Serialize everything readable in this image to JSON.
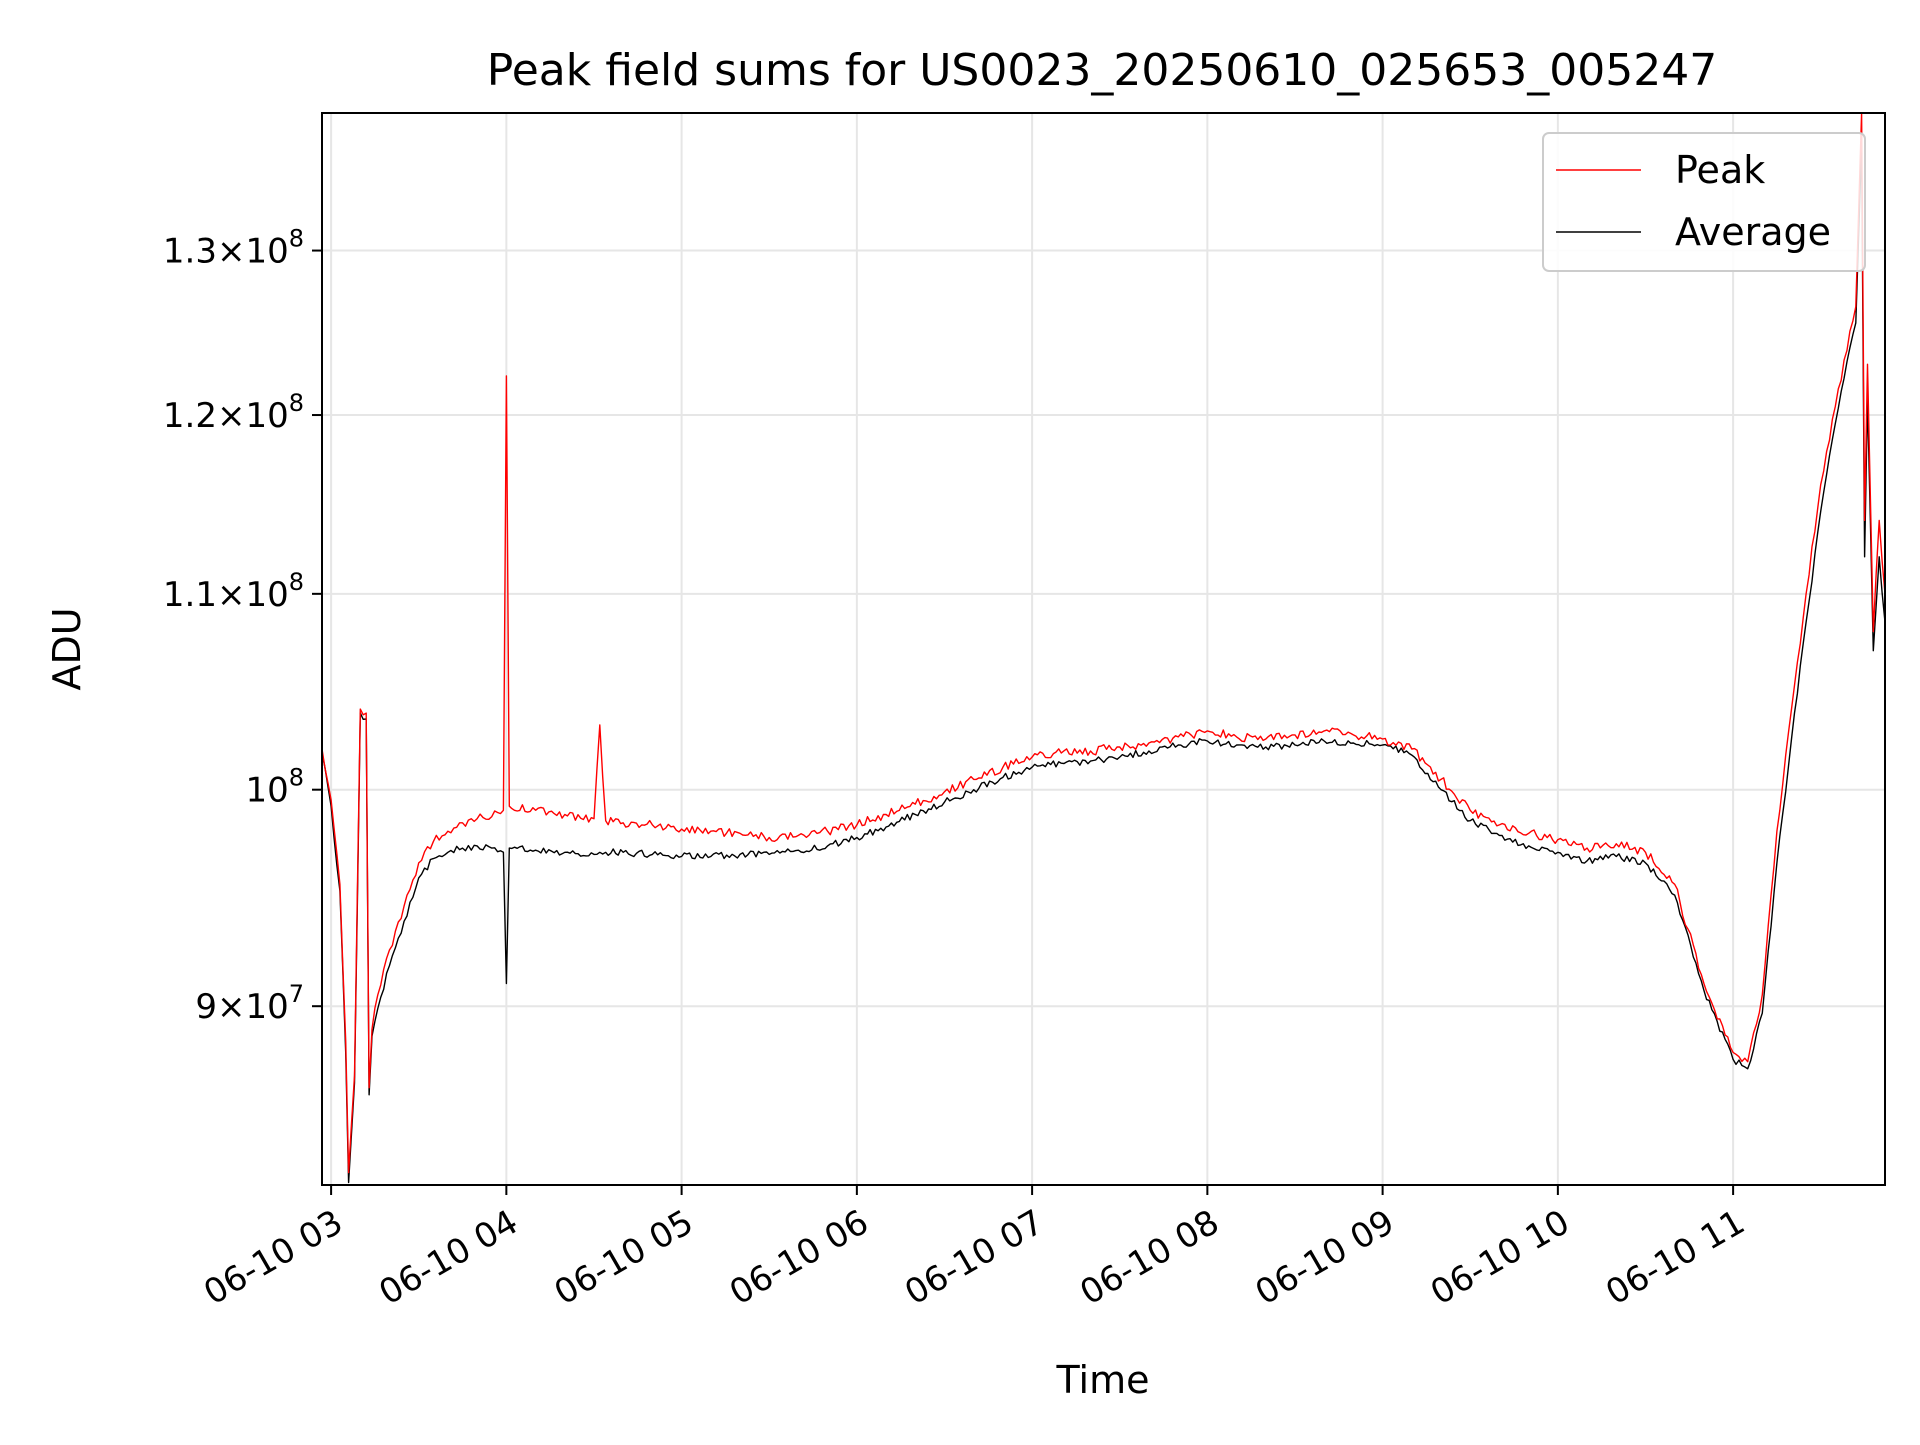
{
  "chart_data": {
    "type": "line",
    "title": "Peak field sums for US0023_20250610_025653_005247",
    "xlabel": "Time",
    "ylabel": "ADU",
    "y_scale": "log",
    "grid": true,
    "legend_position": "top-right",
    "xlim": [
      "2025-06-10T02:56:53",
      "2025-06-10T11:52:00"
    ],
    "ylim": [
      82500000,
      139000000
    ],
    "x_ticks": [
      {
        "value": "2025-06-10T03:00",
        "label": "06-10 03"
      },
      {
        "value": "2025-06-10T04:00",
        "label": "06-10 04"
      },
      {
        "value": "2025-06-10T05:00",
        "label": "06-10 05"
      },
      {
        "value": "2025-06-10T06:00",
        "label": "06-10 06"
      },
      {
        "value": "2025-06-10T07:00",
        "label": "06-10 07"
      },
      {
        "value": "2025-06-10T08:00",
        "label": "06-10 08"
      },
      {
        "value": "2025-06-10T09:00",
        "label": "06-10 09"
      },
      {
        "value": "2025-06-10T10:00",
        "label": "06-10 10"
      },
      {
        "value": "2025-06-10T11:00",
        "label": "06-10 11"
      }
    ],
    "y_ticks": [
      {
        "value": 90000000,
        "mantissa": "9",
        "exponent": "7"
      },
      {
        "value": 100000000,
        "mantissa": "10",
        "exponent": "8",
        "plain_power": true
      },
      {
        "value": 110000000,
        "mantissa": "1.1",
        "exponent": "8"
      },
      {
        "value": 120000000,
        "mantissa": "1.2",
        "exponent": "8"
      },
      {
        "value": 130000000,
        "mantissa": "1.3",
        "exponent": "8"
      }
    ],
    "series": [
      {
        "name": "Peak",
        "color": "#ff0000",
        "x": [
          "2025-06-10T02:56:53",
          "2025-06-10T03:00",
          "2025-06-10T03:03",
          "2025-06-10T03:05",
          "2025-06-10T03:06",
          "2025-06-10T03:08",
          "2025-06-10T03:10",
          "2025-06-10T03:12",
          "2025-06-10T03:13",
          "2025-06-10T03:14",
          "2025-06-10T03:16",
          "2025-06-10T03:20",
          "2025-06-10T03:25",
          "2025-06-10T03:30",
          "2025-06-10T03:35",
          "2025-06-10T03:40",
          "2025-06-10T03:45",
          "2025-06-10T03:50",
          "2025-06-10T03:55",
          "2025-06-10T03:59",
          "2025-06-10T04:00",
          "2025-06-10T04:01",
          "2025-06-10T04:10",
          "2025-06-10T04:20",
          "2025-06-10T04:30",
          "2025-06-10T04:32",
          "2025-06-10T04:34",
          "2025-06-10T04:40",
          "2025-06-10T04:50",
          "2025-06-10T05:00",
          "2025-06-10T05:10",
          "2025-06-10T05:20",
          "2025-06-10T05:30",
          "2025-06-10T05:40",
          "2025-06-10T05:50",
          "2025-06-10T06:00",
          "2025-06-10T06:10",
          "2025-06-10T06:20",
          "2025-06-10T06:30",
          "2025-06-10T06:40",
          "2025-06-10T06:50",
          "2025-06-10T07:00",
          "2025-06-10T07:10",
          "2025-06-10T07:20",
          "2025-06-10T07:30",
          "2025-06-10T07:40",
          "2025-06-10T07:50",
          "2025-06-10T08:00",
          "2025-06-10T08:10",
          "2025-06-10T08:20",
          "2025-06-10T08:30",
          "2025-06-10T08:40",
          "2025-06-10T08:50",
          "2025-06-10T09:00",
          "2025-06-10T09:10",
          "2025-06-10T09:20",
          "2025-06-10T09:30",
          "2025-06-10T09:40",
          "2025-06-10T09:50",
          "2025-06-10T10:00",
          "2025-06-10T10:10",
          "2025-06-10T10:20",
          "2025-06-10T10:30",
          "2025-06-10T10:40",
          "2025-06-10T10:50",
          "2025-06-10T11:00",
          "2025-06-10T11:05",
          "2025-06-10T11:10",
          "2025-06-10T11:15",
          "2025-06-10T11:20",
          "2025-06-10T11:25",
          "2025-06-10T11:30",
          "2025-06-10T11:35",
          "2025-06-10T11:40",
          "2025-06-10T11:42",
          "2025-06-10T11:44",
          "2025-06-10T11:45",
          "2025-06-10T11:46",
          "2025-06-10T11:48",
          "2025-06-10T11:50",
          "2025-06-10T11:52"
        ],
        "y": [
          102000000,
          99500000,
          95500000,
          88500000,
          83000000,
          87000000,
          104000000,
          103800000,
          86500000,
          89000000,
          90500000,
          92500000,
          94500000,
          96500000,
          97500000,
          98000000,
          98400000,
          98600000,
          98700000,
          99000000,
          122300000,
          99200000,
          99000000,
          98800000,
          98600000,
          103200000,
          98500000,
          98400000,
          98300000,
          98100000,
          98000000,
          97900000,
          97700000,
          97800000,
          98000000,
          98300000,
          98800000,
          99300000,
          99900000,
          100500000,
          101100000,
          101600000,
          101800000,
          101900000,
          102100000,
          102300000,
          102600000,
          102900000,
          102600000,
          102500000,
          102700000,
          102900000,
          102700000,
          102500000,
          102000000,
          100500000,
          99000000,
          98300000,
          97900000,
          97600000,
          97200000,
          97400000,
          97000000,
          95500000,
          91000000,
          88000000,
          87600000,
          90500000,
          98000000,
          104000000,
          110000000,
          116000000,
          120500000,
          125000000,
          126500000,
          139000000,
          114000000,
          123000000,
          108000000,
          114000000,
          110000000
        ]
      },
      {
        "name": "Average",
        "color": "#000000",
        "x": [
          "2025-06-10T02:56:53",
          "2025-06-10T03:00",
          "2025-06-10T03:03",
          "2025-06-10T03:05",
          "2025-06-10T03:06",
          "2025-06-10T03:08",
          "2025-06-10T03:10",
          "2025-06-10T03:12",
          "2025-06-10T03:13",
          "2025-06-10T03:14",
          "2025-06-10T03:16",
          "2025-06-10T03:20",
          "2025-06-10T03:25",
          "2025-06-10T03:30",
          "2025-06-10T03:35",
          "2025-06-10T03:40",
          "2025-06-10T03:45",
          "2025-06-10T03:50",
          "2025-06-10T03:55",
          "2025-06-10T03:59",
          "2025-06-10T04:00",
          "2025-06-10T04:01",
          "2025-06-10T04:10",
          "2025-06-10T04:20",
          "2025-06-10T04:30",
          "2025-06-10T04:32",
          "2025-06-10T04:34",
          "2025-06-10T04:40",
          "2025-06-10T04:50",
          "2025-06-10T05:00",
          "2025-06-10T05:10",
          "2025-06-10T05:20",
          "2025-06-10T05:30",
          "2025-06-10T05:40",
          "2025-06-10T05:50",
          "2025-06-10T06:00",
          "2025-06-10T06:10",
          "2025-06-10T06:20",
          "2025-06-10T06:30",
          "2025-06-10T06:40",
          "2025-06-10T06:50",
          "2025-06-10T07:00",
          "2025-06-10T07:10",
          "2025-06-10T07:20",
          "2025-06-10T07:30",
          "2025-06-10T07:40",
          "2025-06-10T07:50",
          "2025-06-10T08:00",
          "2025-06-10T08:10",
          "2025-06-10T08:20",
          "2025-06-10T08:30",
          "2025-06-10T08:40",
          "2025-06-10T08:50",
          "2025-06-10T09:00",
          "2025-06-10T09:10",
          "2025-06-10T09:20",
          "2025-06-10T09:30",
          "2025-06-10T09:40",
          "2025-06-10T09:50",
          "2025-06-10T10:00",
          "2025-06-10T10:10",
          "2025-06-10T10:20",
          "2025-06-10T10:30",
          "2025-06-10T10:40",
          "2025-06-10T10:50",
          "2025-06-10T11:00",
          "2025-06-10T11:05",
          "2025-06-10T11:10",
          "2025-06-10T11:15",
          "2025-06-10T11:20",
          "2025-06-10T11:25",
          "2025-06-10T11:30",
          "2025-06-10T11:35",
          "2025-06-10T11:40",
          "2025-06-10T11:42",
          "2025-06-10T11:44",
          "2025-06-10T11:45",
          "2025-06-10T11:46",
          "2025-06-10T11:48",
          "2025-06-10T11:50",
          "2025-06-10T11:52"
        ],
        "y": [
          101800000,
          99200000,
          95200000,
          88000000,
          82600000,
          86700000,
          103800000,
          103500000,
          86200000,
          88700000,
          89900000,
          91800000,
          93800000,
          95800000,
          96700000,
          97000000,
          97200000,
          97300000,
          97200000,
          97000000,
          91000000,
          97200000,
          97100000,
          97000000,
          96900000,
          97000000,
          97000000,
          97000000,
          96900000,
          96800000,
          96800000,
          96900000,
          96900000,
          97100000,
          97300000,
          97700000,
          98200000,
          98800000,
          99400000,
          100000000,
          100600000,
          101100000,
          101300000,
          101400000,
          101600000,
          101900000,
          102200000,
          102400000,
          102200000,
          102100000,
          102200000,
          102400000,
          102300000,
          102200000,
          101700000,
          100000000,
          98500000,
          97800000,
          97300000,
          97000000,
          96600000,
          96800000,
          96500000,
          95000000,
          90700000,
          87700000,
          87300000,
          89700000,
          96500000,
          102500000,
          108500000,
          114500000,
          119500000,
          124000000,
          125500000,
          137000000,
          112000000,
          121000000,
          107000000,
          112000000,
          108500000
        ]
      }
    ]
  }
}
